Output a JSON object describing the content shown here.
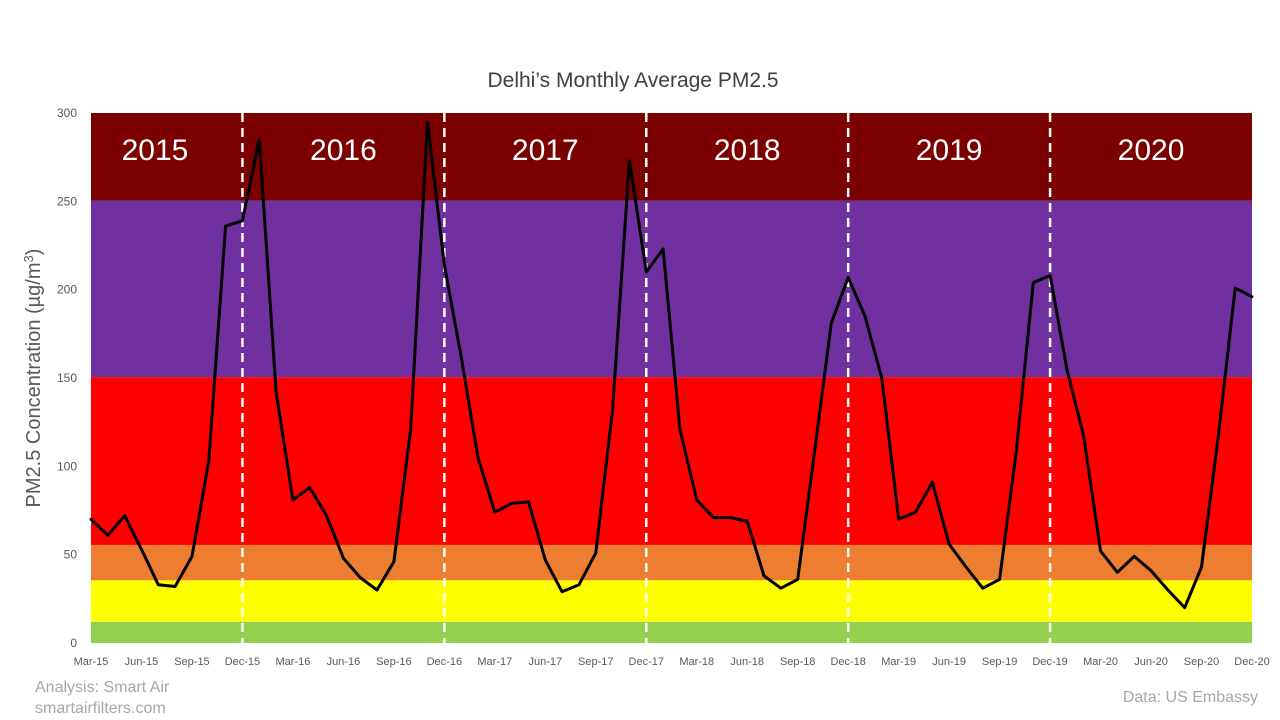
{
  "chart_data": {
    "type": "line",
    "title": "Delhi’s Monthly Average PM2.5",
    "ylabel_main": "PM2.5 Concentration  (µg/m",
    "ylabel_sup": "3",
    "ylabel_close": ")",
    "ylim": [
      0,
      300
    ],
    "yticks": [
      "0",
      "50",
      "100",
      "150",
      "200",
      "250",
      "300"
    ],
    "ytick_values": [
      0,
      50,
      100,
      150,
      200,
      250,
      300
    ],
    "x_start": "Mar-15",
    "x_end": "Dec-20",
    "xtick_labels": [
      "Mar-15",
      "Jun-15",
      "Sep-15",
      "Dec-15",
      "Mar-16",
      "Jun-16",
      "Sep-16",
      "Dec-16",
      "Mar-17",
      "Jun-17",
      "Sep-17",
      "Dec-17",
      "Mar-18",
      "Jun-18",
      "Sep-18",
      "Dec-18",
      "Mar-19",
      "Jun-19",
      "Sep-19",
      "Dec-19",
      "Mar-20",
      "Jun-20",
      "Sep-20",
      "Dec-20"
    ],
    "bands": [
      {
        "from": 0,
        "to": 12,
        "color": "#92d050"
      },
      {
        "from": 12,
        "to": 35.5,
        "color": "#ffff00"
      },
      {
        "from": 35.5,
        "to": 55.5,
        "color": "#ed7d31"
      },
      {
        "from": 55.5,
        "to": 150.5,
        "color": "#ff0000"
      },
      {
        "from": 150.5,
        "to": 250.5,
        "color": "#7030a0"
      },
      {
        "from": 250.5,
        "to": 300,
        "color": "#7b0000"
      }
    ],
    "year_dividers": [
      "Dec-15",
      "Dec-16",
      "Dec-17",
      "Dec-18",
      "Dec-19"
    ],
    "year_labels": [
      "2015",
      "2016",
      "2017",
      "2018",
      "2019",
      "2020"
    ],
    "series": [
      {
        "color": "#000000",
        "x": [
          "Mar-15",
          "Apr-15",
          "May-15",
          "Jun-15",
          "Jul-15",
          "Aug-15",
          "Sep-15",
          "Oct-15",
          "Nov-15",
          "Dec-15",
          "Jan-16",
          "Feb-16",
          "Mar-16",
          "Apr-16",
          "May-16",
          "Jun-16",
          "Jul-16",
          "Aug-16",
          "Sep-16",
          "Oct-16",
          "Nov-16",
          "Dec-16",
          "Jan-17",
          "Feb-17",
          "Mar-17",
          "Apr-17",
          "May-17",
          "Jun-17",
          "Jul-17",
          "Aug-17",
          "Sep-17",
          "Oct-17",
          "Nov-17",
          "Dec-17",
          "Jan-18",
          "Feb-18",
          "Mar-18",
          "Apr-18",
          "May-18",
          "Jun-18",
          "Jul-18",
          "Aug-18",
          "Sep-18",
          "Oct-18",
          "Nov-18",
          "Dec-18",
          "Jan-19",
          "Feb-19",
          "Mar-19",
          "Apr-19",
          "May-19",
          "Jun-19",
          "Jul-19",
          "Aug-19",
          "Sep-19",
          "Oct-19",
          "Nov-19",
          "Dec-19",
          "Jan-20",
          "Feb-20",
          "Mar-20",
          "Apr-20",
          "May-20",
          "Jun-20",
          "Jul-20",
          "Aug-20",
          "Sep-20",
          "Oct-20",
          "Nov-20",
          "Dec-20"
        ],
        "values": [
          70,
          61,
          72,
          53,
          33,
          32,
          49,
          103,
          236,
          239,
          285,
          142,
          81,
          88,
          72,
          48,
          37,
          30,
          46,
          121,
          295,
          214,
          162,
          105,
          74,
          79,
          80,
          47,
          29,
          33,
          51,
          132,
          273,
          210,
          223,
          121,
          81,
          71,
          71,
          69,
          38,
          31,
          36,
          108,
          181,
          207,
          185,
          150,
          70,
          74,
          91,
          56,
          43,
          31,
          36,
          109,
          204,
          208,
          155,
          117,
          52,
          40,
          49,
          41,
          30,
          20,
          43,
          117,
          201,
          196
        ]
      }
    ]
  },
  "footer": {
    "analysis": "Analysis: Smart Air",
    "website": "smartairfilters.com",
    "source": "Data: US Embassy"
  }
}
